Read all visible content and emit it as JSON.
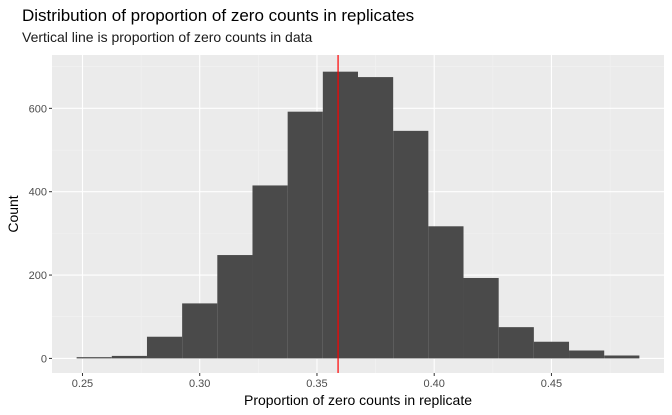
{
  "chart_data": {
    "type": "bar",
    "title": "Distribution of proportion of zero counts in replicates",
    "subtitle": "Vertical line is proportion of zero counts in data",
    "xlabel": "Proportion of zero counts in replicate",
    "ylabel": "Count",
    "xlim": [
      0.237,
      0.498
    ],
    "ylim": [
      -35,
      728
    ],
    "x_ticks": [
      0.25,
      0.3,
      0.35,
      0.4,
      0.45
    ],
    "x_tick_labels": [
      "0.25",
      "0.30",
      "0.35",
      "0.40",
      "0.45"
    ],
    "y_ticks": [
      0,
      200,
      400,
      600
    ],
    "y_tick_labels": [
      "0",
      "200",
      "400",
      "600"
    ],
    "bins": [
      {
        "x0": 0.2475,
        "x1": 0.2625,
        "count": 3
      },
      {
        "x0": 0.2625,
        "x1": 0.2775,
        "count": 6
      },
      {
        "x0": 0.2775,
        "x1": 0.2925,
        "count": 52
      },
      {
        "x0": 0.2925,
        "x1": 0.3075,
        "count": 132
      },
      {
        "x0": 0.3075,
        "x1": 0.3225,
        "count": 248
      },
      {
        "x0": 0.3225,
        "x1": 0.3375,
        "count": 415
      },
      {
        "x0": 0.3375,
        "x1": 0.3525,
        "count": 592
      },
      {
        "x0": 0.3525,
        "x1": 0.3675,
        "count": 688
      },
      {
        "x0": 0.3675,
        "x1": 0.3825,
        "count": 675
      },
      {
        "x0": 0.3825,
        "x1": 0.3975,
        "count": 546
      },
      {
        "x0": 0.3975,
        "x1": 0.4125,
        "count": 317
      },
      {
        "x0": 0.4125,
        "x1": 0.4275,
        "count": 193
      },
      {
        "x0": 0.4275,
        "x1": 0.4425,
        "count": 75
      },
      {
        "x0": 0.4425,
        "x1": 0.4575,
        "count": 40
      },
      {
        "x0": 0.4575,
        "x1": 0.4725,
        "count": 19
      },
      {
        "x0": 0.4725,
        "x1": 0.4875,
        "count": 7
      }
    ],
    "reference_line": {
      "x": 0.359,
      "color": "#ff0000"
    },
    "colors": {
      "panel_background": "#ebebeb",
      "grid_major": "#ffffff",
      "grid_minor": "#f2f2f2",
      "bar_fill": "#4a4a4a"
    },
    "grid": true,
    "legend": "none"
  }
}
